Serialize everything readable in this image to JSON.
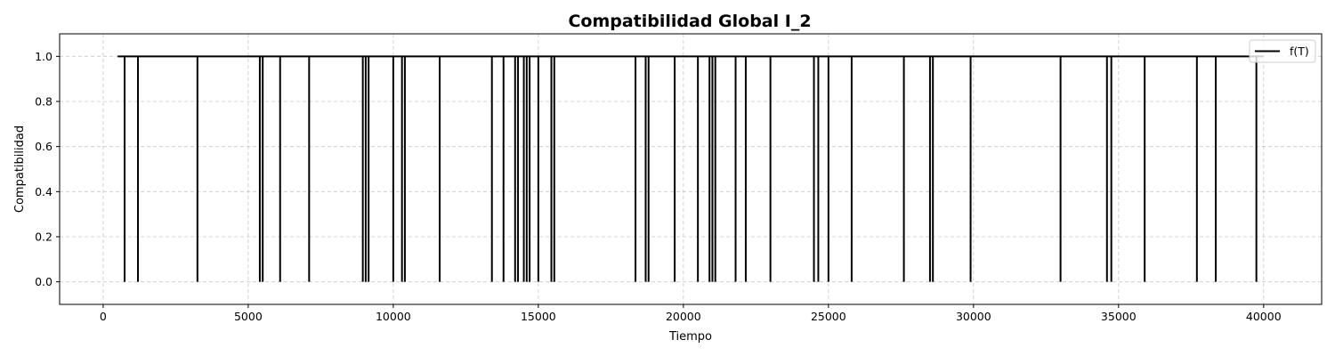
{
  "chart_data": {
    "type": "line",
    "title": "Compatibilidad Global I_2",
    "xlabel": "Tiempo",
    "ylabel": "Compatibilidad",
    "xlim": [
      -1500,
      42000
    ],
    "ylim": [
      -0.1,
      1.1
    ],
    "xticks": [
      0,
      5000,
      10000,
      15000,
      20000,
      25000,
      30000,
      35000,
      40000
    ],
    "xtick_labels": [
      "0",
      "5000",
      "10000",
      "15000",
      "20000",
      "25000",
      "30000",
      "35000",
      "40000"
    ],
    "yticks": [
      0.0,
      0.2,
      0.4,
      0.6,
      0.8,
      1.0
    ],
    "ytick_labels": [
      "0.0",
      "0.2",
      "0.4",
      "0.6",
      "0.8",
      "1.0"
    ],
    "grid": true,
    "legend_position": "top-right",
    "series": [
      {
        "name": "f(T)",
        "color": "#000000",
        "x_start": 500,
        "x_end": 40000,
        "baseline": 1.0,
        "dip_value": 0.0,
        "dips_at": [
          740,
          1200,
          3250,
          5400,
          5500,
          6100,
          7100,
          8950,
          9050,
          9150,
          10000,
          10300,
          10400,
          11600,
          13400,
          13800,
          14200,
          14300,
          14500,
          14600,
          14700,
          15000,
          15450,
          15550,
          18350,
          18700,
          18800,
          19700,
          20500,
          20900,
          21000,
          21100,
          21800,
          22150,
          23000,
          24500,
          24650,
          25000,
          25800,
          27600,
          28500,
          28600,
          29900,
          33000,
          34600,
          34750,
          35900,
          37700,
          38350,
          39750
        ]
      }
    ]
  }
}
